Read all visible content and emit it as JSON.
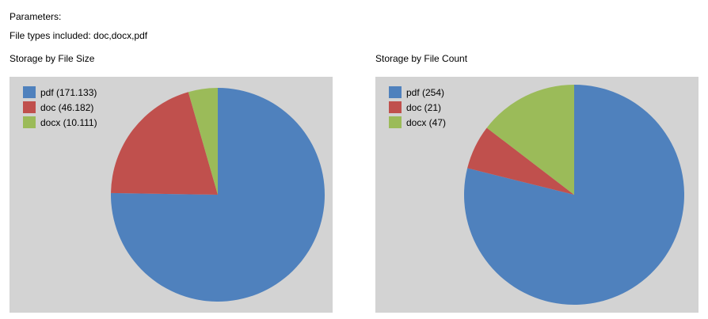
{
  "header": {
    "parameters_label": "Parameters:",
    "file_types": "File types included: doc,docx,pdf"
  },
  "chart_data": [
    {
      "type": "pie",
      "title": "Storage by File Size",
      "legend_position": "top-left",
      "slices": [
        {
          "label": "pdf (171.133)",
          "name": "pdf",
          "value": 171.133,
          "color": "#4f81bd"
        },
        {
          "label": "doc (46.182)",
          "name": "doc",
          "value": 46.182,
          "color": "#c0504d"
        },
        {
          "label": "docx (10.111)",
          "name": "docx",
          "value": 10.111,
          "color": "#9bbb59"
        }
      ]
    },
    {
      "type": "pie",
      "title": "Storage by File Count",
      "legend_position": "top-left",
      "slices": [
        {
          "label": "pdf (254)",
          "name": "pdf",
          "value": 254,
          "color": "#4f81bd"
        },
        {
          "label": "doc (21)",
          "name": "doc",
          "value": 21,
          "color": "#c0504d"
        },
        {
          "label": "docx (47)",
          "name": "docx",
          "value": 47,
          "color": "#9bbb59"
        }
      ]
    }
  ]
}
